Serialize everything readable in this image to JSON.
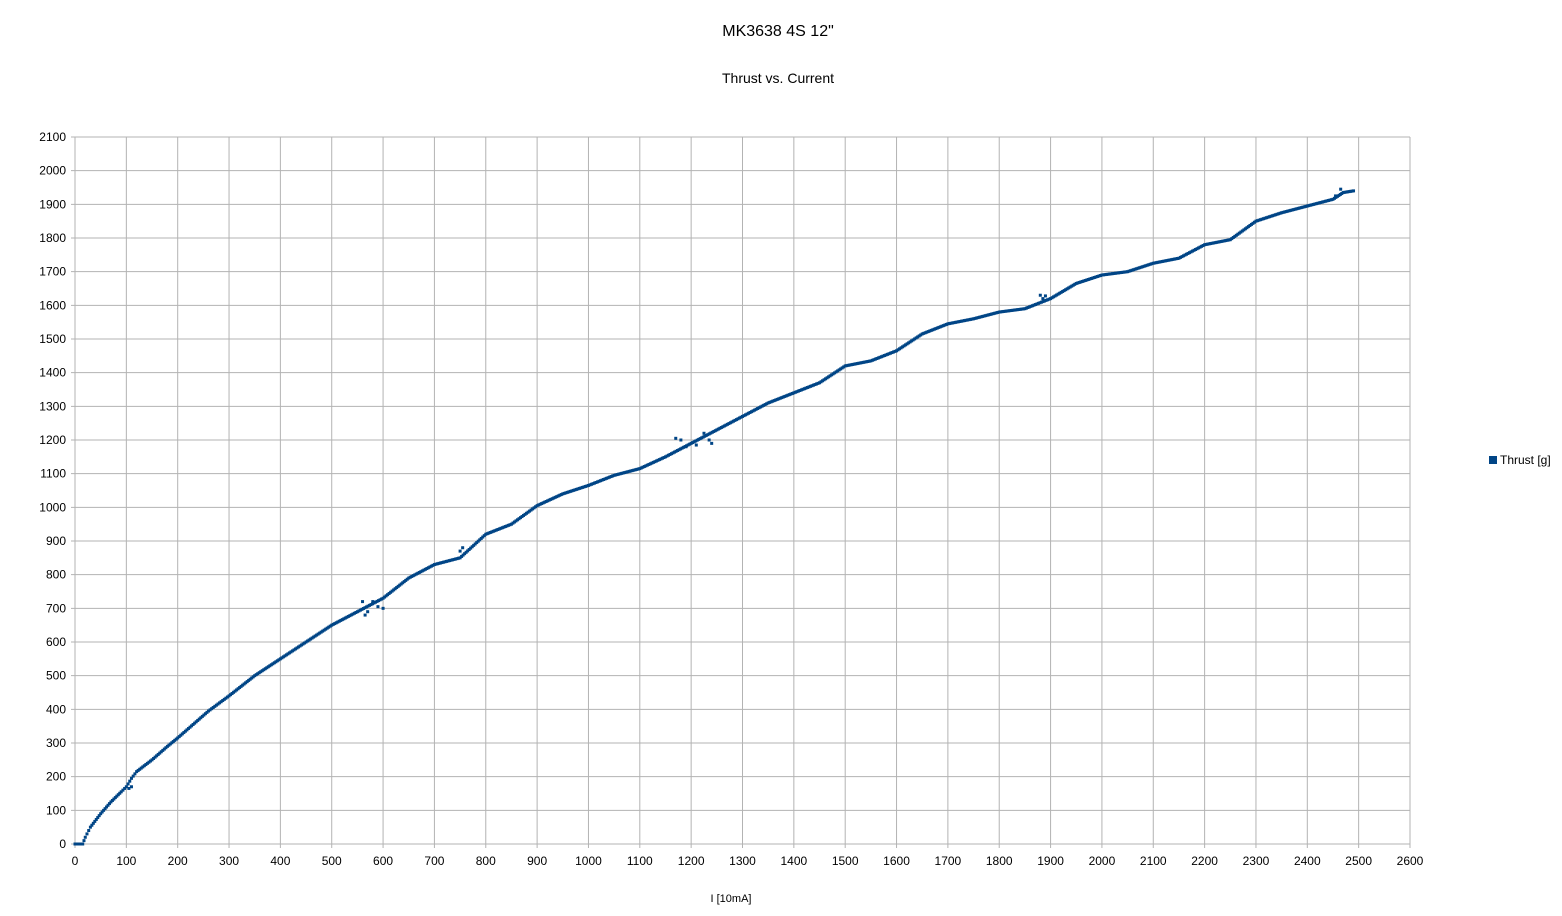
{
  "chart_data": {
    "type": "scatter",
    "title": "MK3638 4S 12\"",
    "subtitle": "Thrust vs. Current",
    "xlabel": "I [10mA]",
    "ylabel": "",
    "xlim": [
      0,
      2600
    ],
    "ylim": [
      0,
      2100
    ],
    "xticks": [
      "0",
      "100",
      "200",
      "300",
      "400",
      "500",
      "600",
      "700",
      "800",
      "900",
      "1000",
      "1100",
      "1200",
      "1300",
      "1400",
      "1500",
      "1600",
      "1700",
      "1800",
      "1900",
      "2000",
      "2100",
      "2200",
      "2300",
      "2400",
      "2500",
      "2600"
    ],
    "yticks": [
      "0",
      "100",
      "200",
      "300",
      "400",
      "500",
      "600",
      "700",
      "800",
      "900",
      "1000",
      "1100",
      "1200",
      "1300",
      "1400",
      "1500",
      "1600",
      "1700",
      "1800",
      "1900",
      "2000",
      "2100"
    ],
    "grid": true,
    "legend_position": "right",
    "series": [
      {
        "name": "Thrust [g]",
        "color": "#004586",
        "curve": [
          [
            0,
            0
          ],
          [
            15,
            0
          ],
          [
            20,
            20
          ],
          [
            30,
            50
          ],
          [
            50,
            90
          ],
          [
            70,
            125
          ],
          [
            90,
            155
          ],
          [
            100,
            170
          ],
          [
            110,
            195
          ],
          [
            120,
            215
          ],
          [
            150,
            250
          ],
          [
            180,
            290
          ],
          [
            200,
            315
          ],
          [
            230,
            355
          ],
          [
            260,
            395
          ],
          [
            300,
            440
          ],
          [
            350,
            500
          ],
          [
            400,
            550
          ],
          [
            450,
            600
          ],
          [
            500,
            650
          ],
          [
            550,
            690
          ],
          [
            600,
            730
          ],
          [
            650,
            790
          ],
          [
            700,
            830
          ],
          [
            750,
            850
          ],
          [
            800,
            920
          ],
          [
            850,
            950
          ],
          [
            900,
            1005
          ],
          [
            950,
            1040
          ],
          [
            1000,
            1065
          ],
          [
            1050,
            1095
          ],
          [
            1100,
            1115
          ],
          [
            1150,
            1150
          ],
          [
            1200,
            1190
          ],
          [
            1250,
            1230
          ],
          [
            1300,
            1270
          ],
          [
            1350,
            1310
          ],
          [
            1400,
            1340
          ],
          [
            1450,
            1370
          ],
          [
            1500,
            1420
          ],
          [
            1550,
            1435
          ],
          [
            1600,
            1465
          ],
          [
            1650,
            1515
          ],
          [
            1700,
            1545
          ],
          [
            1750,
            1560
          ],
          [
            1800,
            1580
          ],
          [
            1850,
            1590
          ],
          [
            1900,
            1620
          ],
          [
            1950,
            1665
          ],
          [
            2000,
            1690
          ],
          [
            2050,
            1700
          ],
          [
            2100,
            1725
          ],
          [
            2150,
            1740
          ],
          [
            2200,
            1780
          ],
          [
            2250,
            1795
          ],
          [
            2300,
            1850
          ],
          [
            2350,
            1875
          ],
          [
            2400,
            1895
          ],
          [
            2450,
            1915
          ],
          [
            2470,
            1935
          ],
          [
            2490,
            1940
          ]
        ],
        "outliers": [
          [
            1170,
            1205
          ],
          [
            1180,
            1200
          ],
          [
            1190,
            1180
          ],
          [
            1210,
            1185
          ],
          [
            1225,
            1220
          ],
          [
            1240,
            1190
          ],
          [
            1235,
            1200
          ],
          [
            1880,
            1630
          ],
          [
            1885,
            1620
          ],
          [
            1890,
            1628
          ],
          [
            580,
            720
          ],
          [
            560,
            720
          ],
          [
            590,
            705
          ],
          [
            600,
            700
          ],
          [
            570,
            690
          ],
          [
            565,
            680
          ],
          [
            750,
            870
          ],
          [
            755,
            880
          ],
          [
            110,
            170
          ],
          [
            105,
            165
          ],
          [
            2455,
            1925
          ],
          [
            2465,
            1945
          ]
        ]
      }
    ]
  }
}
